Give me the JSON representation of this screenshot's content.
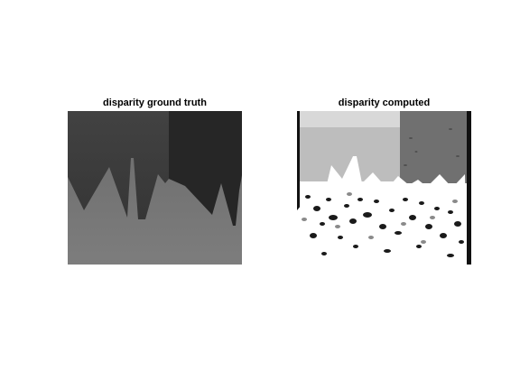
{
  "figure": {
    "panels": [
      {
        "title": "disparity ground truth",
        "image": "disparity-ground-truth-map"
      },
      {
        "title": "disparity computed",
        "image": "disparity-computed-map"
      }
    ]
  },
  "colors": {
    "background": "#ffffff",
    "ground_truth_top_left": "#3d3d3d",
    "ground_truth_top_right": "#262626",
    "ground_truth_bottom": "#7a7a7a",
    "computed_light": "#d9d9d9",
    "computed_mid": "#bdbdbd",
    "computed_dark": "#6e6e6e",
    "computed_noise": "#1a1a1a"
  }
}
